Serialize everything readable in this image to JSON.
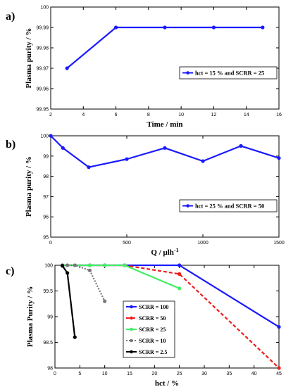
{
  "figure": {
    "panel_labels": [
      "a)",
      "b)",
      "c)"
    ]
  },
  "chart_data": [
    {
      "panel": "a)",
      "type": "line",
      "xlabel": "Time / min",
      "ylabel": "Plasma purity / %",
      "xlim": [
        2,
        16
      ],
      "ylim": [
        99.95,
        100
      ],
      "xticks": [
        "2",
        "4",
        "6",
        "8",
        "10",
        "12",
        "14",
        "16"
      ],
      "yticks": [
        "99.95",
        "99.96",
        "99.97",
        "99.98",
        "99.99",
        "100"
      ],
      "legend_position": "right",
      "series": [
        {
          "name": "hct = 15 % and SCRR = 25",
          "color": "#1a1aff",
          "dash": "solid",
          "marker": "circle",
          "x": [
            3,
            6,
            9,
            12,
            15
          ],
          "values": [
            99.97,
            99.99,
            99.99,
            99.99,
            99.99
          ]
        }
      ]
    },
    {
      "panel": "b)",
      "type": "line",
      "xlabel": "Q / μlh-1",
      "xlabel_main": "Q / μlh",
      "xlabel_sup": "-1",
      "ylabel": "Plasma purity / %",
      "xlim": [
        0,
        1500
      ],
      "ylim": [
        95,
        100
      ],
      "xticks": [
        "0",
        "500",
        "1000",
        "1500"
      ],
      "yticks": [
        "95",
        "96",
        "97",
        "98",
        "99",
        "100"
      ],
      "legend_position": "right",
      "series": [
        {
          "name": "hct = 25 % and SCRR = 50",
          "color": "#1a1aff",
          "dash": "solid",
          "marker": "circle",
          "x": [
            0,
            80,
            250,
            500,
            750,
            1000,
            1250,
            1500
          ],
          "values": [
            100,
            99.4,
            98.45,
            98.85,
            99.4,
            98.75,
            99.5,
            98.9
          ]
        }
      ]
    },
    {
      "panel": "c)",
      "type": "line",
      "xlabel": "hct / %",
      "ylabel": "Plasma Purity / %",
      "xlim": [
        0,
        45
      ],
      "ylim": [
        98,
        100
      ],
      "xticks": [
        "0",
        "5",
        "10",
        "15",
        "20",
        "25",
        "30",
        "35",
        "40",
        "45"
      ],
      "yticks": [
        "98",
        "98.5",
        "99",
        "99.5",
        "100"
      ],
      "legend_position": "center",
      "series": [
        {
          "name": "SCRR = 100",
          "color": "#1a1aff",
          "dash": "solid",
          "marker": "circle",
          "x": [
            1.5,
            7,
            10,
            14,
            25,
            45
          ],
          "values": [
            100,
            100,
            100,
            100,
            100,
            98.8
          ]
        },
        {
          "name": "SCRR = 50",
          "color": "#ee1c1c",
          "dash": "dashed",
          "marker": "circle",
          "x": [
            1.5,
            7,
            10,
            14,
            25,
            45
          ],
          "values": [
            100,
            100,
            100,
            100,
            99.83,
            98
          ]
        },
        {
          "name": "SCRR = 25",
          "color": "#44ee66",
          "dash": "solid",
          "marker": "circle",
          "x": [
            1.5,
            7,
            10,
            14,
            25
          ],
          "values": [
            100,
            100,
            100,
            100,
            99.55
          ]
        },
        {
          "name": "SCRR = 10",
          "color": "#777777",
          "dash": "dotted",
          "marker": "circle",
          "x": [
            1.5,
            2.5,
            4,
            7,
            10
          ],
          "values": [
            100,
            100,
            100,
            99.9,
            99.3
          ]
        },
        {
          "name": "SCRR = 2.5",
          "color": "#000000",
          "dash": "solid",
          "marker": "circle",
          "x": [
            1.5,
            2.5,
            4
          ],
          "values": [
            99.99,
            99.85,
            98.6
          ]
        }
      ]
    }
  ]
}
